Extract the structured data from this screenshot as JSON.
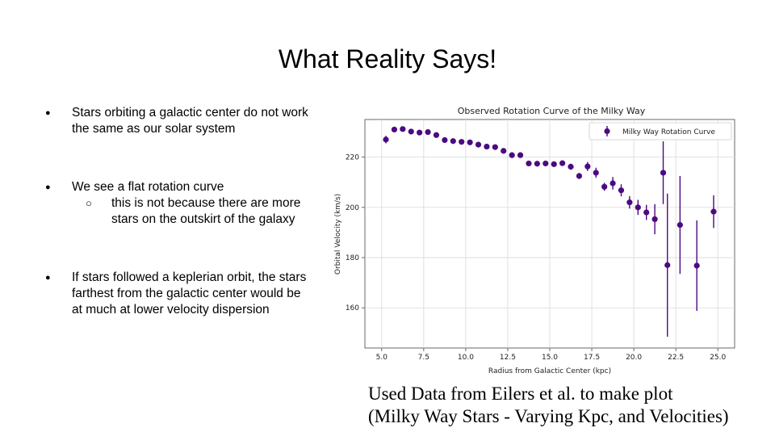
{
  "slide": {
    "title": "What Reality Says!",
    "bullets": [
      "Stars orbiting a galactic center do not work the same as our solar system",
      "We see a flat rotation curve",
      "this is not because there are more stars on the outskirt of the galaxy",
      "If stars followed a keplerian orbit, the stars farthest from the galactic center would be at much at lower velocity dispersion"
    ],
    "caption": [
      "Used Data from Eilers et al. to make plot",
      "(Milky Way Stars - Varying Kpc, and Velocities)"
    ]
  },
  "chart_data": {
    "type": "scatter",
    "title": "Observed Rotation Curve of the Milky Way",
    "xlabel": "Radius from Galactic Center (kpc)",
    "ylabel": "Orbital Velocity (km/s)",
    "xlim": [
      4.0,
      26.0
    ],
    "ylim": [
      144,
      235
    ],
    "xticks": [
      5.0,
      7.5,
      10.0,
      12.5,
      15.0,
      17.5,
      20.0,
      22.5,
      25.0
    ],
    "xtick_labels": [
      "5.0",
      "7.5",
      "10.0",
      "12.5",
      "15.0",
      "17.5",
      "20.0",
      "22.5",
      "25.0"
    ],
    "yticks": [
      160,
      180,
      200,
      220
    ],
    "ytick_labels": [
      "160",
      "180",
      "200",
      "220"
    ],
    "grid": true,
    "legend": "top-right",
    "color": "#4b0a82",
    "series": [
      {
        "name": "Milky Way Rotation Curve",
        "points": [
          {
            "x": 5.25,
            "y": 227.0,
            "err": 1.5
          },
          {
            "x": 5.75,
            "y": 231.0,
            "err": 1.0
          },
          {
            "x": 6.25,
            "y": 231.2,
            "err": 1.0
          },
          {
            "x": 6.75,
            "y": 230.2,
            "err": 0.8
          },
          {
            "x": 7.25,
            "y": 229.8,
            "err": 0.8
          },
          {
            "x": 7.75,
            "y": 230.0,
            "err": 0.8
          },
          {
            "x": 8.25,
            "y": 228.8,
            "err": 0.8
          },
          {
            "x": 8.75,
            "y": 226.8,
            "err": 0.8
          },
          {
            "x": 9.25,
            "y": 226.4,
            "err": 0.8
          },
          {
            "x": 9.75,
            "y": 226.1,
            "err": 0.8
          },
          {
            "x": 10.25,
            "y": 225.9,
            "err": 0.8
          },
          {
            "x": 10.75,
            "y": 225.0,
            "err": 0.8
          },
          {
            "x": 11.25,
            "y": 224.2,
            "err": 0.8
          },
          {
            "x": 11.75,
            "y": 224.0,
            "err": 0.8
          },
          {
            "x": 12.25,
            "y": 222.5,
            "err": 0.8
          },
          {
            "x": 12.75,
            "y": 220.8,
            "err": 0.8
          },
          {
            "x": 13.25,
            "y": 220.8,
            "err": 0.8
          },
          {
            "x": 13.75,
            "y": 217.5,
            "err": 1.0
          },
          {
            "x": 14.25,
            "y": 217.4,
            "err": 1.0
          },
          {
            "x": 14.75,
            "y": 217.5,
            "err": 1.0
          },
          {
            "x": 15.25,
            "y": 217.2,
            "err": 1.0
          },
          {
            "x": 15.75,
            "y": 217.6,
            "err": 1.0
          },
          {
            "x": 16.25,
            "y": 216.2,
            "err": 1.2
          },
          {
            "x": 16.75,
            "y": 212.5,
            "err": 1.2
          },
          {
            "x": 17.25,
            "y": 216.3,
            "err": 1.8
          },
          {
            "x": 17.75,
            "y": 213.8,
            "err": 2.0
          },
          {
            "x": 18.25,
            "y": 208.2,
            "err": 1.6
          },
          {
            "x": 18.75,
            "y": 209.6,
            "err": 2.5
          },
          {
            "x": 19.25,
            "y": 206.8,
            "err": 2.4
          },
          {
            "x": 19.75,
            "y": 202.0,
            "err": 2.5
          },
          {
            "x": 20.25,
            "y": 200.0,
            "err": 3.0
          },
          {
            "x": 20.75,
            "y": 198.0,
            "err": 3.0
          },
          {
            "x": 21.25,
            "y": 195.3,
            "err": 6.0
          },
          {
            "x": 21.75,
            "y": 213.8,
            "err": 12.5
          },
          {
            "x": 22.0,
            "y": 177.0,
            "err": 28.5
          },
          {
            "x": 22.75,
            "y": 193.0,
            "err": 19.5
          },
          {
            "x": 23.75,
            "y": 176.8,
            "err": 18.0
          },
          {
            "x": 24.75,
            "y": 198.3,
            "err": 6.5
          }
        ]
      }
    ]
  }
}
